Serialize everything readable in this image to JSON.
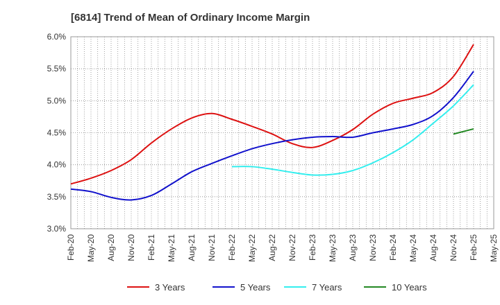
{
  "chart_data": {
    "type": "line",
    "title": "[6814]  Trend of Mean of Ordinary Income Margin",
    "xlabel": "",
    "ylabel": "",
    "ylim": [
      3.0,
      6.0
    ],
    "y_ticks": [
      "3.0%",
      "3.5%",
      "4.0%",
      "4.5%",
      "5.0%",
      "5.5%",
      "6.0%"
    ],
    "x_tick_labels": [
      "Feb-20",
      "May-20",
      "Aug-20",
      "Nov-20",
      "Feb-21",
      "May-21",
      "Aug-21",
      "Nov-21",
      "Feb-22",
      "May-22",
      "Aug-22",
      "Nov-22",
      "Feb-23",
      "May-23",
      "Aug-23",
      "Nov-23",
      "Feb-24",
      "May-24",
      "Aug-24",
      "Nov-24",
      "Feb-25",
      "May-25"
    ],
    "x_range": [
      "2020-02",
      "2025-05"
    ],
    "grid": true,
    "legend_position": "bottom",
    "series": [
      {
        "name": "3 Years",
        "color": "#dd1111",
        "x": [
          "2020-02",
          "2020-05",
          "2020-08",
          "2020-11",
          "2021-02",
          "2021-05",
          "2021-08",
          "2021-11",
          "2022-02",
          "2022-05",
          "2022-08",
          "2022-11",
          "2023-02",
          "2023-05",
          "2023-08",
          "2023-11",
          "2024-02",
          "2024-05",
          "2024-08",
          "2024-11",
          "2025-02"
        ],
        "values": [
          3.7,
          3.79,
          3.91,
          4.08,
          4.34,
          4.56,
          4.73,
          4.8,
          4.71,
          4.6,
          4.48,
          4.33,
          4.27,
          4.38,
          4.55,
          4.79,
          4.96,
          5.04,
          5.13,
          5.38,
          5.88
        ]
      },
      {
        "name": "5 Years",
        "color": "#1111cc",
        "x": [
          "2020-02",
          "2020-05",
          "2020-08",
          "2020-11",
          "2021-02",
          "2021-05",
          "2021-08",
          "2021-11",
          "2022-02",
          "2022-05",
          "2022-08",
          "2022-11",
          "2023-02",
          "2023-05",
          "2023-08",
          "2023-11",
          "2024-02",
          "2024-05",
          "2024-08",
          "2024-11",
          "2025-02"
        ],
        "values": [
          3.62,
          3.58,
          3.49,
          3.45,
          3.52,
          3.7,
          3.89,
          4.02,
          4.14,
          4.25,
          4.33,
          4.39,
          4.43,
          4.44,
          4.43,
          4.5,
          4.56,
          4.63,
          4.77,
          5.05,
          5.46
        ]
      },
      {
        "name": "7 Years",
        "color": "#33eeee",
        "x": [
          "2022-02",
          "2022-05",
          "2022-08",
          "2022-11",
          "2023-02",
          "2023-05",
          "2023-08",
          "2023-11",
          "2024-02",
          "2024-05",
          "2024-08",
          "2024-11",
          "2025-02"
        ],
        "values": [
          3.97,
          3.97,
          3.93,
          3.88,
          3.84,
          3.85,
          3.91,
          4.03,
          4.19,
          4.39,
          4.65,
          4.92,
          5.25
        ]
      },
      {
        "name": "10 Years",
        "color": "#228822",
        "x": [
          "2024-11",
          "2025-02"
        ],
        "values": [
          4.48,
          4.56
        ]
      }
    ]
  }
}
